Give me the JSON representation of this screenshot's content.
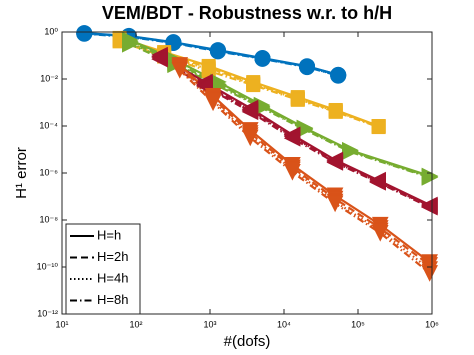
{
  "chart_data": {
    "type": "line",
    "title": "VEM/BDT - Robustness w.r. to h/H",
    "xlabel": "#(dofs)",
    "ylabel": "H¹ error",
    "xscale": "log",
    "yscale": "log",
    "grid": false,
    "legend_position": "lower left",
    "xlim": [
      10,
      1000000
    ],
    "ylim": [
      1e-12,
      1
    ],
    "xticks": [
      {
        "value": 10,
        "label": "10¹"
      },
      {
        "value": 100,
        "label": "10²"
      },
      {
        "value": 1000,
        "label": "10³"
      },
      {
        "value": 10000,
        "label": "10⁴"
      },
      {
        "value": 100000,
        "label": "10⁵"
      },
      {
        "value": 1000000,
        "label": "10⁶"
      }
    ],
    "yticks": [
      {
        "value": 1,
        "label": "10⁰"
      },
      {
        "value": 0.01,
        "label": "10⁻²"
      },
      {
        "value": 0.0001,
        "label": "10⁻⁴"
      },
      {
        "value": 1e-06,
        "label": "10⁻⁶"
      },
      {
        "value": 1e-08,
        "label": "10⁻⁸"
      },
      {
        "value": 1e-10,
        "label": "10⁻¹⁰"
      },
      {
        "value": 1e-12,
        "label": "10⁻¹²"
      }
    ],
    "legend": [
      {
        "label": "H=h",
        "dash": "solid"
      },
      {
        "label": "H=2h",
        "dash": "dashed"
      },
      {
        "label": "H=4h",
        "dash": "dotted"
      },
      {
        "label": "H=8h",
        "dash": "dashdot"
      }
    ],
    "groups": [
      {
        "color": "#0072bd",
        "marker": "circle",
        "x": [
          20,
          80,
          320,
          1280,
          5120,
          20480,
          54000
        ],
        "series": [
          {
            "dash": "solid",
            "values": [
              0.9,
              0.68,
              0.37,
              0.17,
              0.078,
              0.035,
              0.015
            ]
          },
          {
            "dash": "dashed",
            "values": [
              0.88,
              0.66,
              0.36,
              0.16,
              0.075,
              0.034,
              0.015
            ]
          },
          {
            "dash": "dotted",
            "values": [
              0.86,
              0.64,
              0.35,
              0.16,
              0.074,
              0.033,
              0.014
            ]
          },
          {
            "dash": "dashdot",
            "values": [
              0.84,
              0.62,
              0.34,
              0.15,
              0.072,
              0.032,
              0.014
            ]
          }
        ]
      },
      {
        "color": "#edb120",
        "marker": "square",
        "x": [
          60,
          240,
          960,
          3840,
          15360,
          50000,
          190000
        ],
        "series": [
          {
            "dash": "solid",
            "values": [
              0.56,
              0.14,
              0.036,
              0.0074,
              0.0017,
              0.00048,
              0.0001
            ]
          },
          {
            "dash": "dashed",
            "values": [
              0.5,
              0.12,
              0.03,
              0.0065,
              0.0015,
              0.00045,
              0.0001
            ]
          },
          {
            "dash": "dotted",
            "values": [
              0.45,
              0.1,
              0.026,
              0.006,
              0.0014,
              0.00042,
              9.5e-05
            ]
          },
          {
            "dash": "dashdot",
            "values": [
              0.4,
              0.09,
              0.022,
              0.0055,
              0.0013,
              0.0004,
              9e-05
            ]
          }
        ]
      },
      {
        "color": "#77ac30",
        "marker": "triangle-right",
        "x": [
          83,
          340,
          1290,
          5000,
          19000,
          78000,
          930000
        ],
        "series": [
          {
            "dash": "solid",
            "values": [
              0.46,
              0.064,
              0.0075,
              0.00078,
              8.3e-05,
              9.4e-06,
              7.5e-07
            ]
          },
          {
            "dash": "dashed",
            "values": [
              0.4,
              0.05,
              0.006,
              0.0007,
              8e-05,
              9e-06,
              7e-07
            ]
          },
          {
            "dash": "dotted",
            "values": [
              0.35,
              0.045,
              0.0055,
              0.00065,
              7.5e-05,
              8.5e-06,
              6.8e-07
            ]
          },
          {
            "dash": "dashdot",
            "values": [
              0.3,
              0.04,
              0.005,
              0.0006,
              7e-05,
              8e-06,
              6.5e-07
            ]
          }
        ]
      },
      {
        "color": "#a2142f",
        "marker": "triangle-left",
        "x": [
          210,
          850,
          3500,
          13000,
          49000,
          186000,
          930000
        ],
        "series": [
          {
            "dash": "solid",
            "values": [
              0.105,
              0.0074,
              0.00058,
              4.2e-05,
              3.6e-06,
              5e-07,
              4.4e-08
            ]
          },
          {
            "dash": "dashed",
            "values": [
              0.09,
              0.006,
              0.0005,
              3.8e-05,
              3.3e-06,
              4.5e-07,
              4e-08
            ]
          },
          {
            "dash": "dotted",
            "values": [
              0.08,
              0.0055,
              0.00045,
              3.5e-05,
              3e-06,
              4.2e-07,
              3.8e-08
            ]
          },
          {
            "dash": "dashdot",
            "values": [
              0.07,
              0.005,
              0.0004,
              3e-05,
              2.8e-06,
              4e-07,
              3.5e-08
            ]
          }
        ]
      },
      {
        "color": "#d95319",
        "marker": "triangle-down",
        "x": [
          390,
          1100,
          3500,
          13000,
          49000,
          200000,
          930000
        ],
        "series": [
          {
            "dash": "solid",
            "values": [
              0.039,
              0.0019,
              6.7e-05,
              2.2e-06,
              1.1e-07,
              6.2e-09,
              1.6e-10
            ]
          },
          {
            "dash": "dashed",
            "values": [
              0.033,
              0.0015,
              5e-05,
              1.7e-06,
              8e-08,
              4.5e-09,
              1.2e-10
            ]
          },
          {
            "dash": "dotted",
            "values": [
              0.028,
              0.0012,
              4e-05,
              1.4e-06,
              6e-08,
              3.5e-09,
              8e-11
            ]
          },
          {
            "dash": "dashdot",
            "values": [
              0.024,
              0.001,
              3.2e-05,
              1.1e-06,
              5e-08,
              2.8e-09,
              5.5e-11
            ]
          }
        ]
      }
    ]
  }
}
